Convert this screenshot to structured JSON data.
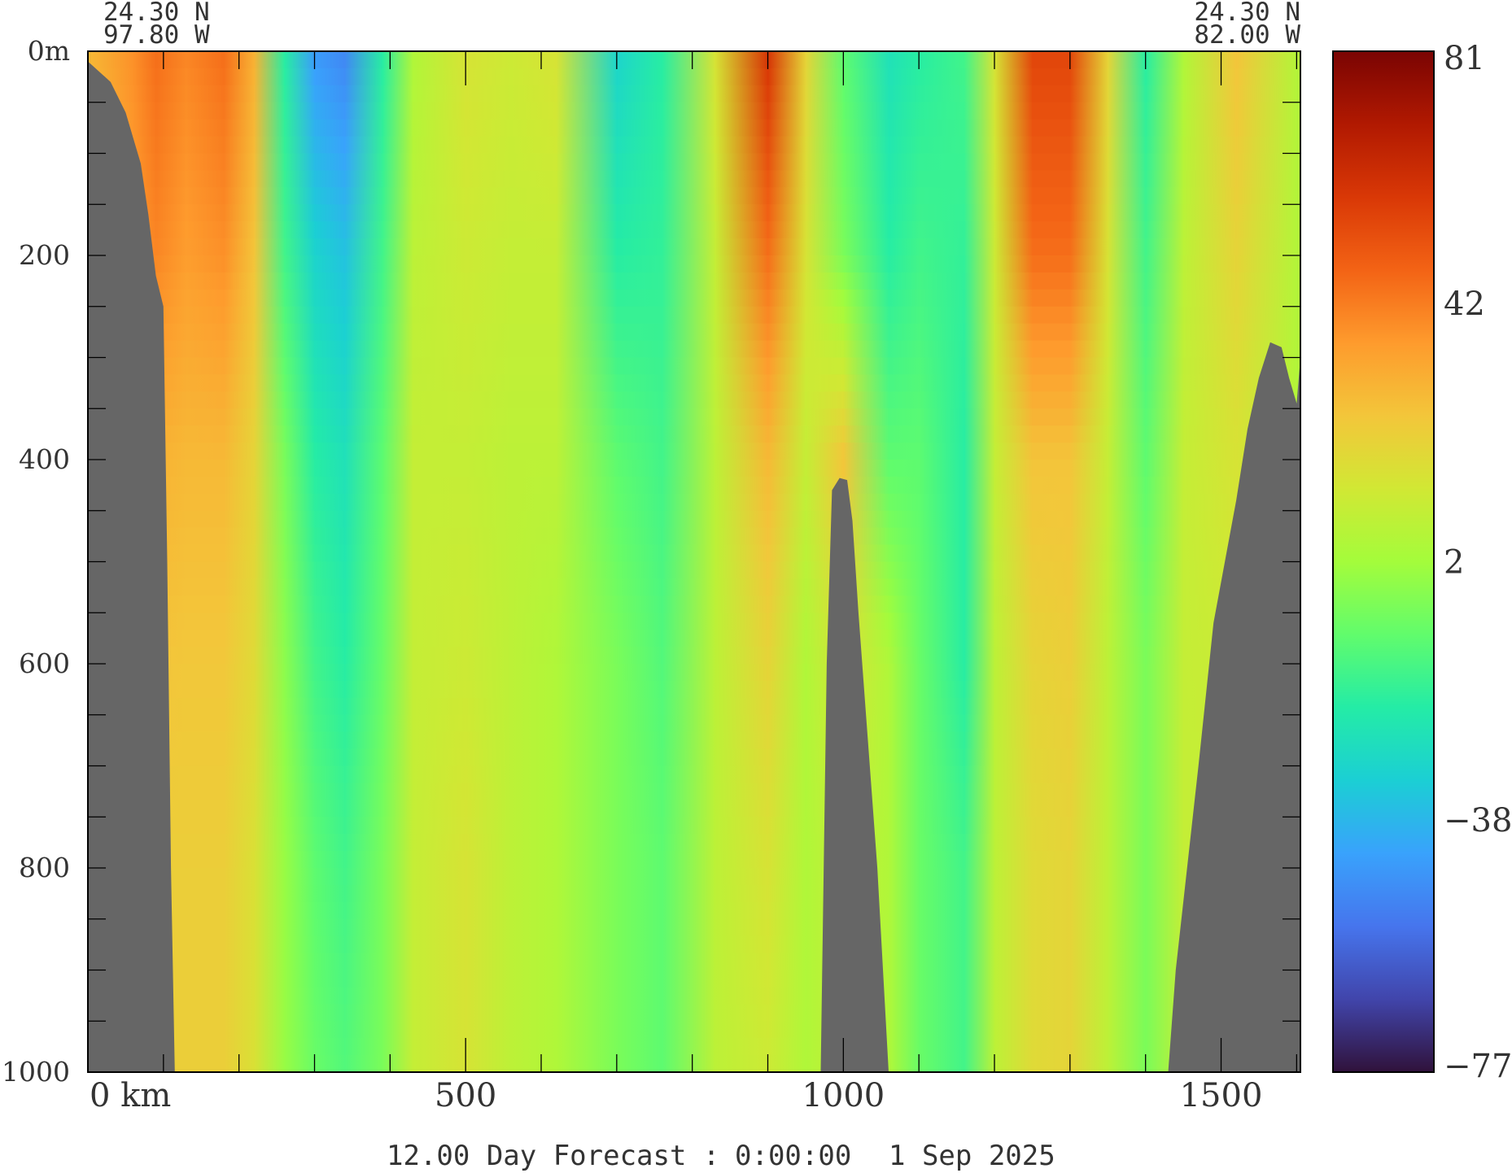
{
  "chart_data": {
    "type": "heatmap",
    "title": "",
    "corner_labels": {
      "top_left_lat": "24.30 N",
      "top_left_lon": "97.80 W",
      "top_right_lat": "24.30 N",
      "top_right_lon": "82.00 W"
    },
    "x_axis": {
      "unit": "km",
      "range": [
        0,
        1605
      ],
      "ticks": [
        0,
        500,
        1000,
        1500
      ],
      "tick_labels": [
        "0 km",
        "500",
        "1000",
        "1500"
      ]
    },
    "y_axis": {
      "unit": "m",
      "range": [
        0,
        1000
      ],
      "inverted": true,
      "ticks": [
        0,
        200,
        400,
        600,
        800,
        1000
      ],
      "tick_labels": [
        "0m",
        "200",
        "400",
        "600",
        "800",
        "1000"
      ]
    },
    "colorbar": {
      "range": [
        -77,
        81
      ],
      "tick_values": [
        81,
        42,
        2,
        -38,
        -77
      ],
      "tick_labels": [
        "81",
        "42",
        "2",
        "−38",
        "−77"
      ],
      "colors": [
        "#30123b",
        "#4145ab",
        "#4675ed",
        "#39a2fc",
        "#1bcfd4",
        "#24eca6",
        "#61fc6c",
        "#a4fc3b",
        "#d1e834",
        "#f3c63a",
        "#fe9b2d",
        "#f36315",
        "#d93806",
        "#b11901",
        "#7a0403"
      ]
    },
    "columns": [
      {
        "x": 0,
        "v": [
          28,
          25,
          20,
          18,
          18,
          18
        ]
      },
      {
        "x": 60,
        "v": [
          38,
          35,
          28,
          24,
          22,
          22
        ]
      },
      {
        "x": 90,
        "v": [
          45,
          40,
          30,
          25,
          22,
          22
        ]
      },
      {
        "x": 130,
        "v": [
          40,
          35,
          28,
          24,
          22,
          22
        ]
      },
      {
        "x": 180,
        "v": [
          45,
          38,
          28,
          24,
          22,
          22
        ]
      },
      {
        "x": 220,
        "v": [
          30,
          25,
          20,
          18,
          16,
          16
        ]
      },
      {
        "x": 260,
        "v": [
          -20,
          -15,
          -5,
          -2,
          0,
          0
        ]
      },
      {
        "x": 300,
        "v": [
          -45,
          -30,
          -20,
          -15,
          -10,
          -8
        ]
      },
      {
        "x": 340,
        "v": [
          -50,
          -35,
          -25,
          -20,
          -15,
          -12
        ]
      },
      {
        "x": 390,
        "v": [
          -20,
          -15,
          -10,
          -8,
          -5,
          -5
        ]
      },
      {
        "x": 430,
        "v": [
          5,
          8,
          10,
          10,
          10,
          10
        ]
      },
      {
        "x": 500,
        "v": [
          15,
          12,
          10,
          12,
          15,
          15
        ]
      },
      {
        "x": 560,
        "v": [
          12,
          10,
          8,
          8,
          8,
          8
        ]
      },
      {
        "x": 620,
        "v": [
          15,
          10,
          8,
          5,
          5,
          5
        ]
      },
      {
        "x": 700,
        "v": [
          -30,
          -20,
          -10,
          -5,
          -5,
          -5
        ]
      },
      {
        "x": 760,
        "v": [
          -20,
          -18,
          -15,
          -12,
          -10,
          -10
        ]
      },
      {
        "x": 830,
        "v": [
          15,
          10,
          8,
          8,
          8,
          8
        ]
      },
      {
        "x": 900,
        "v": [
          60,
          45,
          28,
          20,
          15,
          12
        ]
      },
      {
        "x": 950,
        "v": [
          20,
          15,
          10,
          5,
          5,
          5
        ]
      },
      {
        "x": 1000,
        "v": [
          -10,
          -5,
          25,
          15,
          10,
          10
        ]
      },
      {
        "x": 1060,
        "v": [
          -25,
          -20,
          -10,
          5,
          5,
          5
        ]
      },
      {
        "x": 1100,
        "v": [
          -20,
          -15,
          -10,
          -8,
          -8,
          -8
        ]
      },
      {
        "x": 1160,
        "v": [
          -15,
          -18,
          -20,
          -20,
          -15,
          -15
        ]
      },
      {
        "x": 1200,
        "v": [
          15,
          12,
          10,
          8,
          8,
          8
        ]
      },
      {
        "x": 1250,
        "v": [
          55,
          45,
          25,
          20,
          18,
          18
        ]
      },
      {
        "x": 1300,
        "v": [
          55,
          45,
          25,
          22,
          20,
          20
        ]
      },
      {
        "x": 1350,
        "v": [
          20,
          15,
          10,
          8,
          8,
          8
        ]
      },
      {
        "x": 1400,
        "v": [
          -20,
          -15,
          -10,
          -5,
          -5,
          -5
        ]
      },
      {
        "x": 1450,
        "v": [
          5,
          8,
          10,
          10,
          10,
          10
        ]
      },
      {
        "x": 1520,
        "v": [
          25,
          20,
          15,
          12,
          10,
          10
        ]
      },
      {
        "x": 1605,
        "v": [
          5,
          5,
          5,
          5,
          5,
          5
        ]
      }
    ],
    "column_depths": [
      0,
      200,
      400,
      600,
      800,
      1000
    ],
    "topography": {
      "color": "#666666",
      "left_shelf": [
        [
          0,
          10
        ],
        [
          30,
          30
        ],
        [
          50,
          60
        ],
        [
          70,
          110
        ],
        [
          80,
          160
        ],
        [
          90,
          220
        ],
        [
          100,
          250
        ],
        [
          105,
          500
        ],
        [
          110,
          800
        ],
        [
          115,
          1000
        ]
      ],
      "seamount": [
        [
          970,
          1000
        ],
        [
          978,
          600
        ],
        [
          985,
          430
        ],
        [
          995,
          418
        ],
        [
          1005,
          420
        ],
        [
          1012,
          460
        ],
        [
          1020,
          550
        ],
        [
          1045,
          800
        ],
        [
          1060,
          1000
        ]
      ],
      "right_slope": [
        [
          1430,
          1000
        ],
        [
          1440,
          900
        ],
        [
          1470,
          700
        ],
        [
          1490,
          560
        ],
        [
          1500,
          520
        ],
        [
          1520,
          440
        ],
        [
          1535,
          370
        ],
        [
          1550,
          320
        ],
        [
          1565,
          285
        ],
        [
          1580,
          290
        ],
        [
          1590,
          320
        ],
        [
          1600,
          345
        ],
        [
          1605,
          300
        ],
        [
          1605,
          1000
        ]
      ]
    }
  },
  "footer": {
    "forecast_label": "12.00 Day Forecast :",
    "time": "0:00:00",
    "date": "1 Sep 2025"
  }
}
